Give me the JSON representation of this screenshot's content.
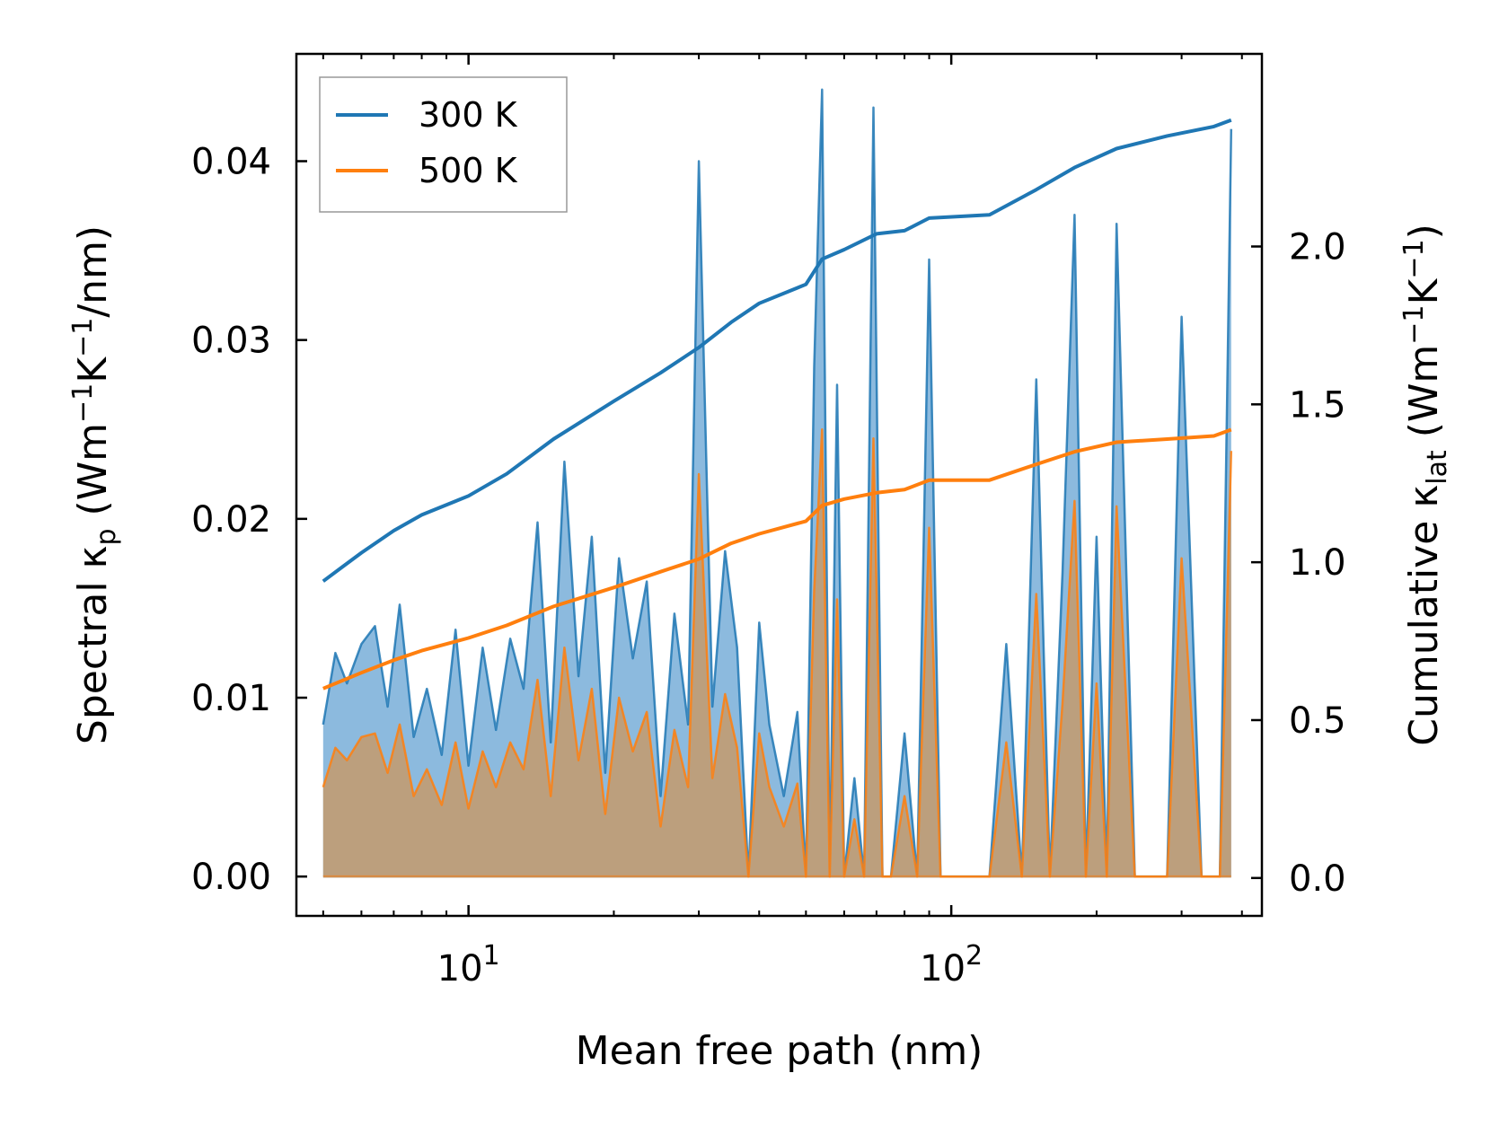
{
  "chart_data": {
    "type": "line",
    "xlabel": "Mean free path (nm)",
    "ylabel_left": {
      "prefix": "Spectral κ",
      "sub": "p",
      "units_open": " (Wm",
      "sup1": "−1",
      "k": "K",
      "sup2": "−1",
      "units_close": "/nm)"
    },
    "ylabel_right": {
      "prefix": "Cumulative κ",
      "sub": "lat",
      "units_open": " (Wm",
      "sup1": "−1",
      "k": "K",
      "sup2": "−1",
      "units_close": ")"
    },
    "x_scale": "log",
    "xlim": [
      4.4,
      440
    ],
    "ylim_left": [
      -0.0022,
      0.046
    ],
    "ylim_right": [
      -0.12,
      2.61
    ],
    "x_ticks": [
      {
        "value": 10,
        "base": "10",
        "exp": "1"
      },
      {
        "value": 100,
        "base": "10",
        "exp": "2"
      }
    ],
    "y_ticks_left": [
      "0.00",
      "0.01",
      "0.02",
      "0.03",
      "0.04"
    ],
    "y_ticks_right": [
      "0.0",
      "0.5",
      "1.0",
      "1.5",
      "2.0"
    ],
    "legend": {
      "position": "top-left",
      "entries": [
        "300 K",
        "500 K"
      ]
    },
    "colors": {
      "series_300": "#1f77b4",
      "series_500": "#ff7f0e",
      "fill_300": "#7fb2da",
      "fill_500": "#c49a6c"
    },
    "cumulative": [
      {
        "name": "300 K",
        "x": [
          5,
          6,
          7,
          8,
          10,
          12,
          15,
          20,
          25,
          30,
          35,
          40,
          50,
          54,
          60,
          70,
          80,
          90,
          120,
          150,
          180,
          220,
          280,
          350,
          380
        ],
        "y": [
          0.94,
          1.03,
          1.1,
          1.15,
          1.21,
          1.28,
          1.39,
          1.51,
          1.6,
          1.68,
          1.76,
          1.82,
          1.88,
          1.96,
          1.99,
          2.04,
          2.05,
          2.09,
          2.1,
          2.18,
          2.25,
          2.31,
          2.35,
          2.38,
          2.4
        ]
      },
      {
        "name": "500 K",
        "x": [
          5,
          6,
          7,
          8,
          10,
          12,
          15,
          20,
          25,
          30,
          35,
          40,
          50,
          54,
          60,
          70,
          80,
          90,
          120,
          150,
          180,
          220,
          280,
          350,
          380
        ],
        "y": [
          0.6,
          0.65,
          0.69,
          0.72,
          0.76,
          0.8,
          0.86,
          0.92,
          0.97,
          1.01,
          1.06,
          1.09,
          1.13,
          1.18,
          1.2,
          1.22,
          1.23,
          1.26,
          1.26,
          1.31,
          1.35,
          1.38,
          1.39,
          1.4,
          1.42
        ]
      }
    ],
    "spectral": [
      {
        "name": "300 K",
        "x": [
          5,
          5.3,
          5.6,
          6,
          6.4,
          6.8,
          7.2,
          7.7,
          8.2,
          8.8,
          9.4,
          10,
          10.7,
          11.4,
          12.2,
          13,
          13.9,
          14.8,
          15.8,
          16.9,
          18,
          19.2,
          20.5,
          21.9,
          23.4,
          25,
          26.7,
          28.5,
          30,
          32,
          34,
          36,
          38,
          40,
          42,
          45,
          48,
          50,
          52,
          54,
          56,
          58,
          60,
          63,
          66,
          69,
          72,
          75,
          80,
          85,
          90,
          95,
          100,
          110,
          120,
          130,
          140,
          150,
          160,
          170,
          180,
          190,
          200,
          210,
          220,
          240,
          260,
          280,
          300,
          330,
          360,
          380
        ],
        "y": [
          0.0085,
          0.0125,
          0.0108,
          0.013,
          0.014,
          0.0095,
          0.0152,
          0.0078,
          0.0105,
          0.0068,
          0.0138,
          0.0062,
          0.0128,
          0.0082,
          0.0133,
          0.0105,
          0.0198,
          0.0075,
          0.0232,
          0.0112,
          0.019,
          0.0058,
          0.0178,
          0.0122,
          0.0165,
          0.0045,
          0.0147,
          0.0085,
          0.04,
          0.0095,
          0.0182,
          0.0128,
          0,
          0.0142,
          0.0085,
          0.0045,
          0.0092,
          0,
          0.0285,
          0.044,
          0,
          0.0275,
          0,
          0.0055,
          0,
          0.043,
          0,
          0,
          0.008,
          0,
          0.0345,
          0,
          0,
          0,
          0,
          0.013,
          0,
          0.0278,
          0,
          0.017,
          0.037,
          0,
          0.019,
          0,
          0.0365,
          0,
          0,
          0,
          0.0313,
          0,
          0,
          0.0418
        ]
      },
      {
        "name": "500 K",
        "x": [
          5,
          5.3,
          5.6,
          6,
          6.4,
          6.8,
          7.2,
          7.7,
          8.2,
          8.8,
          9.4,
          10,
          10.7,
          11.4,
          12.2,
          13,
          13.9,
          14.8,
          15.8,
          16.9,
          18,
          19.2,
          20.5,
          21.9,
          23.4,
          25,
          26.7,
          28.5,
          30,
          32,
          34,
          36,
          38,
          40,
          42,
          45,
          48,
          50,
          52,
          54,
          56,
          58,
          60,
          63,
          66,
          69,
          72,
          75,
          80,
          85,
          90,
          95,
          100,
          110,
          120,
          130,
          140,
          150,
          160,
          170,
          180,
          190,
          200,
          210,
          220,
          240,
          260,
          280,
          300,
          330,
          360,
          380
        ],
        "y": [
          0.005,
          0.0072,
          0.0065,
          0.0078,
          0.008,
          0.0058,
          0.0085,
          0.0045,
          0.006,
          0.004,
          0.0075,
          0.0038,
          0.007,
          0.005,
          0.0075,
          0.006,
          0.011,
          0.0045,
          0.0128,
          0.0065,
          0.0105,
          0.0035,
          0.01,
          0.007,
          0.0092,
          0.0028,
          0.0082,
          0.005,
          0.0225,
          0.0055,
          0.0102,
          0.0072,
          0,
          0.008,
          0.005,
          0.0028,
          0.0052,
          0,
          0.016,
          0.025,
          0,
          0.0155,
          0,
          0.0032,
          0,
          0.0245,
          0,
          0,
          0.0045,
          0,
          0.0195,
          0,
          0,
          0,
          0,
          0.0075,
          0,
          0.0158,
          0,
          0.0097,
          0.021,
          0,
          0.0108,
          0,
          0.0207,
          0,
          0,
          0,
          0.0178,
          0,
          0,
          0.0238
        ]
      }
    ]
  }
}
